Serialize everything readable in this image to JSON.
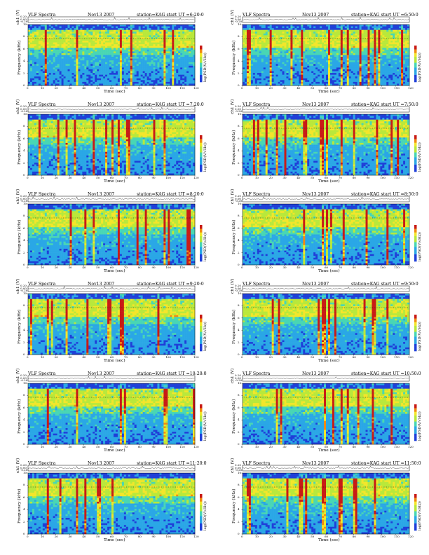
{
  "chart_data": {
    "type": "heatmap",
    "figure_title": "VLF Spectra",
    "date": "Nov13 2007",
    "station_label": "station=KAG",
    "start_prefix": "start  UT =",
    "ch_label": "ch1 (V)",
    "ch_ticks": [
      "0.20",
      "0.00",
      "-0.20"
    ],
    "ylabel": "Frequency (kHz)",
    "y_ticks": [
      "0",
      "2",
      "4",
      "6",
      "8",
      "10"
    ],
    "ylim": [
      0,
      10
    ],
    "xlabel": "Time (sec)",
    "x_ticks": [
      "0",
      "10",
      "20",
      "30",
      "40",
      "50",
      "60",
      "70",
      "80",
      "90",
      "100",
      "110",
      "120"
    ],
    "xlim": [
      0,
      120
    ],
    "colorbar_label": "log(PSD(V/√Hz))",
    "panels": [
      {
        "start": "6:20:0"
      },
      {
        "start": "6:50:0"
      },
      {
        "start": "7:20:0"
      },
      {
        "start": "7:50:0"
      },
      {
        "start": "8:20:0"
      },
      {
        "start": "8:50:0"
      },
      {
        "start": "9:20:0"
      },
      {
        "start": "9:50:0"
      },
      {
        "start": "10:20:0"
      },
      {
        "start": "10:50:0"
      },
      {
        "start": "11:20:0"
      },
      {
        "start": "11:50:0"
      }
    ]
  }
}
